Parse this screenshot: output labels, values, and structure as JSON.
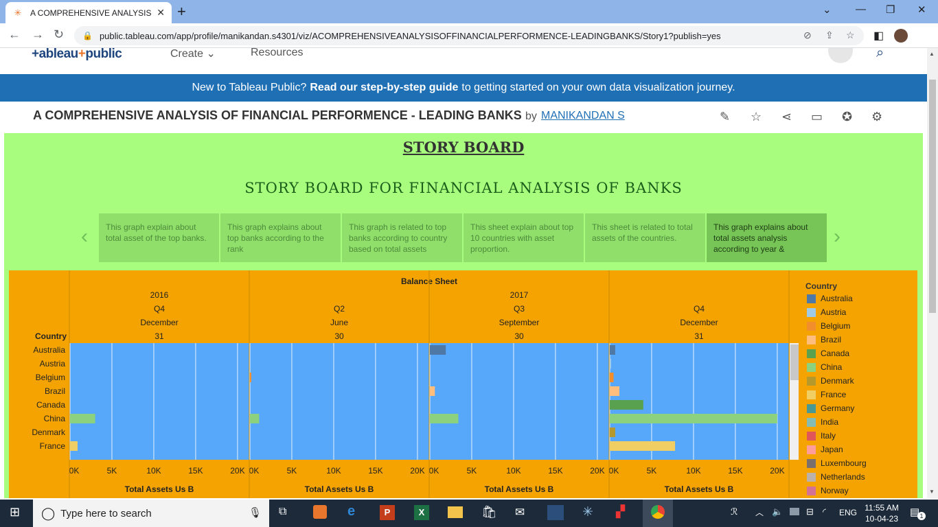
{
  "browser": {
    "tab_title": "A COMPREHENSIVE ANALYSIS OF",
    "url": "public.tableau.com/app/profile/manikandan.s4301/viz/ACOMPREHENSIVEANALYSISOFFINANCIALPERFORMENCE-LEADINGBANKS/Story1?publish=yes"
  },
  "tableau_header": {
    "logo_left": "+ableau",
    "logo_right": "public",
    "nav": [
      "Create",
      "Resources"
    ]
  },
  "banner": {
    "pre": "New to Tableau Public?",
    "bold": "Read our step-by-step guide",
    "post": "to getting started on your own data visualization journey."
  },
  "viz": {
    "title": "A COMPREHENSIVE ANALYSIS OF FINANCIAL PERFORMENCE - LEADING BANKS",
    "by": "by",
    "author": "MANIKANDAN S"
  },
  "story": {
    "heading": "STORY BOARD",
    "subtitle": "STORY BOARD FOR FINANCIAL ANALYSIS OF BANKS",
    "points": [
      "This graph explain about total asset of the top banks.",
      "This graph explains about top banks according to the rank",
      "This graph is related to top banks according to country based on total assets",
      "This sheet explain about top 10 countries with asset proportion.",
      "This sheet is related to total assets of the countries.",
      "This graph explains about total assets analysis according to year &"
    ]
  },
  "chart_data": {
    "type": "bar",
    "title": "Balance Sheet",
    "row_header": "Country",
    "years": [
      {
        "label": "2016",
        "panels": [
          0
        ]
      },
      {
        "label": "2017",
        "panels": [
          1,
          2,
          3
        ]
      }
    ],
    "panels": [
      {
        "quarter": "Q4",
        "month": "December",
        "day": "31"
      },
      {
        "quarter": "Q2",
        "month": "June",
        "day": "30"
      },
      {
        "quarter": "Q3",
        "month": "September",
        "day": "30"
      },
      {
        "quarter": "Q4",
        "month": "December",
        "day": "31"
      }
    ],
    "categories": [
      "Australia",
      "Austria",
      "Belgium",
      "Brazil",
      "Canada",
      "China",
      "Denmark",
      "France"
    ],
    "xlabel": "Total Assets Us B",
    "xticks": [
      "0K",
      "5K",
      "10K",
      "15K",
      "20K"
    ],
    "xlim": [
      0,
      20500
    ],
    "series": [
      {
        "values": [
          0,
          0,
          0,
          0,
          0,
          3000,
          0,
          900
        ]
      },
      {
        "values": [
          0,
          0,
          150,
          0,
          0,
          1100,
          0,
          0
        ]
      },
      {
        "values": [
          1900,
          0,
          0,
          600,
          0,
          3400,
          0,
          0
        ]
      },
      {
        "values": [
          650,
          120,
          450,
          1150,
          4000,
          20000,
          650,
          7800
        ]
      }
    ],
    "legend": [
      {
        "name": "Australia",
        "color": "#4e79a7"
      },
      {
        "name": "Austria",
        "color": "#a0cbe8"
      },
      {
        "name": "Belgium",
        "color": "#f28e2b"
      },
      {
        "name": "Brazil",
        "color": "#ffbe7d"
      },
      {
        "name": "Canada",
        "color": "#59a14f"
      },
      {
        "name": "China",
        "color": "#8cd17d"
      },
      {
        "name": "Denmark",
        "color": "#b6992d"
      },
      {
        "name": "France",
        "color": "#f1ce63"
      },
      {
        "name": "Germany",
        "color": "#499894"
      },
      {
        "name": "India",
        "color": "#86bcb6"
      },
      {
        "name": "Italy",
        "color": "#e15759"
      },
      {
        "name": "Japan",
        "color": "#ff9d9a"
      },
      {
        "name": "Luxembourg",
        "color": "#79706e"
      },
      {
        "name": "Netherlands",
        "color": "#bab0ac"
      },
      {
        "name": "Norway",
        "color": "#d37295"
      }
    ],
    "plot_background": "#57a8fa",
    "legend_title": "Country"
  },
  "taskbar": {
    "search_placeholder": "Type here to search",
    "language": "ENG",
    "time": "11:55 AM",
    "date": "10-04-23",
    "notification_count": "1"
  }
}
